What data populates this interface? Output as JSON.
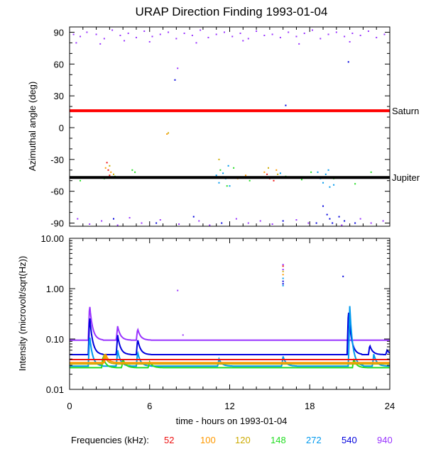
{
  "chart_data": [
    {
      "type": "scatter",
      "title": "URAP Direction Finding  1993-01-04",
      "ylabel": "Azimuthal angle (deg)",
      "xlim": [
        0,
        24
      ],
      "ylim": [
        -93,
        95
      ],
      "yticks": [
        90,
        60,
        30,
        0,
        -30,
        -60,
        -90
      ],
      "reference_lines": [
        {
          "name": "Saturn",
          "y": 16,
          "color": "#ff0000"
        },
        {
          "name": "Jupiter",
          "y": -47,
          "color": "#000000"
        }
      ],
      "series": [
        {
          "freq": "52",
          "color": "#ee1111",
          "points": [
            [
              2.8,
              -33
            ],
            [
              2.9,
              -40
            ],
            [
              3.0,
              -45
            ],
            [
              14.8,
              -44
            ],
            [
              15.0,
              -48
            ],
            [
              15.3,
              -50
            ]
          ]
        },
        {
          "freq": "100",
          "color": "#ff9900",
          "points": [
            [
              2.7,
              -38
            ],
            [
              3.1,
              -42
            ],
            [
              12.6,
              -48
            ],
            [
              13.2,
              -45
            ],
            [
              14.6,
              -42
            ],
            [
              15.5,
              -40
            ],
            [
              7.3,
              -6
            ]
          ]
        },
        {
          "freq": "120",
          "color": "#ccaa00",
          "points": [
            [
              3.0,
              -36
            ],
            [
              3.3,
              -44
            ],
            [
              11.2,
              -30
            ],
            [
              14.9,
              -38
            ],
            [
              15.6,
              -44
            ],
            [
              7.4,
              -5
            ]
          ]
        },
        {
          "freq": "148",
          "color": "#22dd22",
          "points": [
            [
              0.8,
              -50
            ],
            [
              2.6,
              -48
            ],
            [
              3.4,
              -46
            ],
            [
              4.7,
              -40
            ],
            [
              4.9,
              -42
            ],
            [
              11.3,
              -40
            ],
            [
              11.8,
              -55
            ],
            [
              12.3,
              -38
            ],
            [
              13.5,
              -50
            ],
            [
              16.2,
              -46
            ],
            [
              17.4,
              -49
            ],
            [
              18.1,
              -42
            ],
            [
              19.8,
              -48
            ],
            [
              22.6,
              -42
            ],
            [
              21.4,
              -53
            ]
          ]
        },
        {
          "freq": "272",
          "color": "#0099ee",
          "points": [
            [
              11.0,
              -45
            ],
            [
              11.2,
              -52
            ],
            [
              11.5,
              -43
            ],
            [
              11.7,
              -48
            ],
            [
              11.9,
              -36
            ],
            [
              12.0,
              -55
            ],
            [
              18.6,
              -42
            ],
            [
              18.8,
              -48
            ],
            [
              19.0,
              -52
            ],
            [
              19.2,
              -44
            ],
            [
              19.4,
              -40
            ],
            [
              19.5,
              -56
            ],
            [
              19.6,
              -47
            ],
            [
              19.8,
              -54
            ],
            [
              15.8,
              -43
            ]
          ]
        },
        {
          "freq": "540",
          "color": "#0000dd",
          "points": [
            [
              3.3,
              -86
            ],
            [
              6.5,
              -90
            ],
            [
              9.3,
              -84
            ],
            [
              11.4,
              -90
            ],
            [
              16.0,
              -88
            ],
            [
              16.2,
              21
            ],
            [
              18.5,
              -90
            ],
            [
              19.0,
              -74
            ],
            [
              19.3,
              -82
            ],
            [
              19.5,
              -86
            ],
            [
              19.7,
              -90
            ],
            [
              20.2,
              -84
            ],
            [
              20.6,
              -88
            ],
            [
              21.4,
              -90
            ],
            [
              20.9,
              62
            ],
            [
              7.9,
              45
            ]
          ]
        },
        {
          "freq": "940",
          "color": "#9933ff",
          "points": [
            [
              0.3,
              88
            ],
            [
              0.8,
              86
            ],
            [
              1.3,
              90
            ],
            [
              2.0,
              88
            ],
            [
              2.6,
              84
            ],
            [
              3.2,
              92
            ],
            [
              3.8,
              87
            ],
            [
              4.4,
              89
            ],
            [
              5.0,
              85
            ],
            [
              5.6,
              91
            ],
            [
              6.2,
              86
            ],
            [
              6.8,
              88
            ],
            [
              7.4,
              90
            ],
            [
              8.0,
              84
            ],
            [
              8.6,
              89
            ],
            [
              9.2,
              87
            ],
            [
              9.8,
              92
            ],
            [
              10.4,
              85
            ],
            [
              11.0,
              88
            ],
            [
              11.6,
              90
            ],
            [
              12.2,
              86
            ],
            [
              12.8,
              89
            ],
            [
              13.4,
              84
            ],
            [
              14.0,
              91
            ],
            [
              14.6,
              87
            ],
            [
              15.2,
              88
            ],
            [
              15.8,
              85
            ],
            [
              16.4,
              90
            ],
            [
              17.0,
              86
            ],
            [
              17.6,
              89
            ],
            [
              18.2,
              92
            ],
            [
              18.8,
              84
            ],
            [
              19.4,
              88
            ],
            [
              20.0,
              90
            ],
            [
              20.6,
              86
            ],
            [
              21.2,
              89
            ],
            [
              21.8,
              87
            ],
            [
              22.4,
              91
            ],
            [
              23.0,
              85
            ],
            [
              23.6,
              88
            ],
            [
              0.5,
              80
            ],
            [
              2.3,
              79
            ],
            [
              4.1,
              82
            ],
            [
              6.0,
              81
            ],
            [
              9.5,
              80
            ],
            [
              13.0,
              82
            ],
            [
              17.2,
              79
            ],
            [
              21.0,
              81
            ],
            [
              8.1,
              56
            ],
            [
              0.6,
              -86
            ],
            [
              1.5,
              -91
            ],
            [
              2.4,
              -88
            ],
            [
              3.6,
              -92
            ],
            [
              4.5,
              -85
            ],
            [
              5.4,
              -90
            ],
            [
              6.8,
              -87
            ],
            [
              8.2,
              -91
            ],
            [
              9.7,
              -88
            ],
            [
              10.5,
              -92
            ],
            [
              12.5,
              -86
            ],
            [
              13.4,
              -90
            ],
            [
              14.3,
              -88
            ],
            [
              15.2,
              -91
            ],
            [
              17.0,
              -87
            ],
            [
              17.9,
              -90
            ],
            [
              20.4,
              -92
            ],
            [
              21.8,
              -86
            ],
            [
              22.6,
              -90
            ],
            [
              23.5,
              -88
            ]
          ]
        }
      ]
    },
    {
      "type": "line",
      "ylabel": "Intensity (microvolt/sqrt(Hz))",
      "xlabel": "time - hours on 1993-01-04",
      "yscale": "log",
      "xlim": [
        0,
        24
      ],
      "ylim": [
        0.01,
        10
      ],
      "xticks": [
        0,
        6,
        12,
        18,
        24
      ],
      "ytick_labels": [
        "10.00",
        "1.00",
        "0.10",
        "0.01"
      ],
      "ytick_values": [
        10,
        1,
        0.1,
        0.01
      ],
      "series": [
        {
          "freq": "940",
          "color": "#9933ff",
          "baseline": 0.095,
          "spikes": [
            [
              1.5,
              0.5
            ],
            [
              3.6,
              0.18
            ],
            [
              5.1,
              0.16
            ]
          ],
          "isolated": [
            [
              16.0,
              3.0
            ],
            [
              16.0,
              2.4
            ],
            [
              8.1,
              0.92
            ],
            [
              8.5,
              0.12
            ]
          ]
        },
        {
          "freq": "540",
          "color": "#0000dd",
          "baseline": 0.049,
          "spikes": [
            [
              1.5,
              0.3
            ],
            [
              3.6,
              0.12
            ],
            [
              5.1,
              0.1
            ],
            [
              20.9,
              0.4
            ],
            [
              22.5,
              0.075
            ],
            [
              23.8,
              0.06
            ]
          ],
          "isolated": [
            [
              16.0,
              1.4
            ],
            [
              16.0,
              1.25
            ],
            [
              20.5,
              1.75
            ]
          ]
        },
        {
          "freq": "272",
          "color": "#0099ee",
          "baseline": 0.029,
          "spikes": [
            [
              1.5,
              0.12
            ],
            [
              3.6,
              0.06
            ],
            [
              5.1,
              0.055
            ],
            [
              11.2,
              0.04
            ],
            [
              16.0,
              0.045
            ],
            [
              21.0,
              0.45
            ],
            [
              22.8,
              0.05
            ]
          ],
          "isolated": [
            [
              16.0,
              1.6
            ],
            [
              16.0,
              1.15
            ]
          ]
        },
        {
          "freq": "148",
          "color": "#22dd22",
          "baseline": 0.027,
          "spikes": [
            [
              2.5,
              0.045
            ],
            [
              4.0,
              0.04
            ],
            [
              6.0,
              0.035
            ],
            [
              21.3,
              0.04
            ]
          ],
          "isolated": []
        },
        {
          "freq": "120",
          "color": "#ccaa00",
          "baseline": 0.032,
          "spikes": [
            [
              2.6,
              0.05
            ]
          ],
          "isolated": [
            [
              16.0,
              2.2
            ]
          ]
        },
        {
          "freq": "100",
          "color": "#ff9900",
          "baseline": 0.034,
          "spikes": [
            [
              2.7,
              0.05
            ]
          ],
          "isolated": [
            [
              16.0,
              1.9
            ]
          ]
        },
        {
          "freq": "52",
          "color": "#ee1111",
          "baseline": 0.039,
          "spikes": [],
          "isolated": [
            [
              16.0,
              2.8
            ]
          ]
        }
      ]
    }
  ],
  "legend": {
    "label": "Frequencies (kHz):",
    "items": [
      {
        "text": "52",
        "color": "#ee1111"
      },
      {
        "text": "100",
        "color": "#ff9900"
      },
      {
        "text": "120",
        "color": "#ccaa00"
      },
      {
        "text": "148",
        "color": "#22dd22"
      },
      {
        "text": "272",
        "color": "#0099ee"
      },
      {
        "text": "540",
        "color": "#0000dd"
      },
      {
        "text": "940",
        "color": "#9933ff"
      }
    ]
  }
}
